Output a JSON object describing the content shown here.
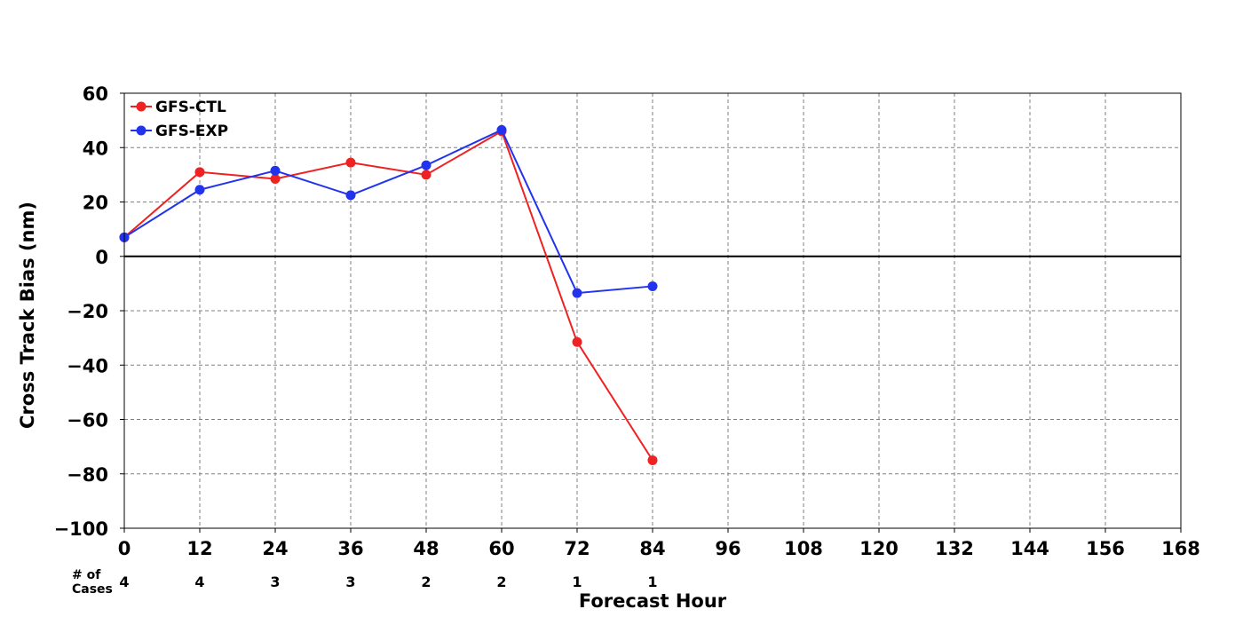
{
  "chart_data": {
    "type": "line",
    "title": "",
    "xlabel": "Forecast Hour",
    "ylabel": "Cross Track Bias (nm)",
    "xlim": [
      0,
      168
    ],
    "ylim": [
      -100,
      60
    ],
    "xticks": [
      0,
      12,
      24,
      36,
      48,
      60,
      72,
      84,
      96,
      108,
      120,
      132,
      144,
      156,
      168
    ],
    "yticks": [
      60,
      40,
      20,
      0,
      -20,
      -40,
      -60,
      -80,
      -100
    ],
    "ytick_labels": [
      "60",
      "40",
      "20",
      "0",
      "−20",
      "−40",
      "−60",
      "−80",
      "−100"
    ],
    "grid": true,
    "zero_line": true,
    "legend_position": "top-left",
    "series": [
      {
        "name": "GFS-CTL",
        "color": "#ee2222",
        "x": [
          0,
          12,
          24,
          36,
          48,
          60,
          72,
          84
        ],
        "y": [
          7,
          31,
          28.5,
          34.5,
          30,
          46,
          -31.5,
          -75
        ]
      },
      {
        "name": "GFS-EXP",
        "color": "#2233ee",
        "x": [
          0,
          12,
          24,
          36,
          48,
          60,
          72,
          84
        ],
        "y": [
          7,
          24.5,
          31.5,
          22.5,
          33.5,
          46.5,
          -13.5,
          -11
        ]
      }
    ],
    "cases": {
      "label_line1": "# of",
      "label_line2": "Cases",
      "x": [
        0,
        12,
        24,
        36,
        48,
        60,
        72,
        84
      ],
      "values": [
        "4",
        "4",
        "3",
        "3",
        "2",
        "2",
        "1",
        "1"
      ]
    }
  }
}
